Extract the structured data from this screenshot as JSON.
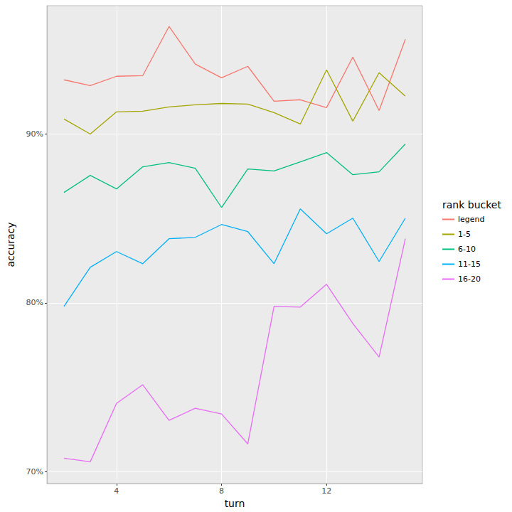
{
  "chart_data": {
    "type": "line",
    "xlabel": "turn",
    "ylabel": "accuracy",
    "legend_title": "rank bucket",
    "legend": "right",
    "grid": true,
    "x": [
      2,
      3,
      4,
      5,
      6,
      7,
      8,
      9,
      10,
      11,
      12,
      13,
      14,
      15
    ],
    "xlim": [
      1.35,
      15.65
    ],
    "xticks": [
      4,
      8,
      12
    ],
    "ylim": [
      69.3,
      97.6
    ],
    "yticks": [
      {
        "value": 70,
        "label": "70%"
      },
      {
        "value": 80,
        "label": "80%"
      },
      {
        "value": 90,
        "label": "90%"
      }
    ],
    "series": [
      {
        "name": "legend",
        "color": "#F8766D",
        "values": [
          93.21,
          92.87,
          93.42,
          93.46,
          96.37,
          94.14,
          93.33,
          94.01,
          91.94,
          92.03,
          91.56,
          94.56,
          91.39,
          95.61
        ]
      },
      {
        "name": "1-5",
        "color": "#A3A500",
        "values": [
          90.89,
          90.0,
          91.31,
          91.35,
          91.6,
          91.73,
          91.81,
          91.77,
          91.27,
          90.59,
          93.8,
          90.76,
          93.63,
          92.24
        ]
      },
      {
        "name": "6-10",
        "color": "#00BF7D",
        "values": [
          86.54,
          87.55,
          86.75,
          88.06,
          88.31,
          87.97,
          85.65,
          87.93,
          87.81,
          88.35,
          88.9,
          87.59,
          87.76,
          89.41
        ]
      },
      {
        "name": "11-15",
        "color": "#00B0F6",
        "values": [
          79.79,
          82.11,
          83.04,
          82.32,
          83.8,
          83.88,
          84.64,
          84.22,
          82.32,
          85.57,
          84.09,
          85.02,
          82.45,
          85.02
        ]
      },
      {
        "name": "16-20",
        "color": "#E76BF3",
        "values": [
          70.8,
          70.59,
          74.05,
          75.15,
          73.04,
          73.76,
          73.42,
          71.65,
          79.79,
          79.75,
          81.1,
          78.78,
          76.79,
          83.8
        ]
      }
    ]
  }
}
